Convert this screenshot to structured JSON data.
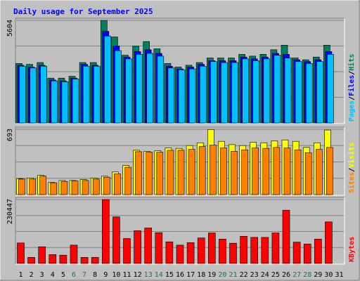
{
  "chart_data": {
    "type": "bar",
    "title": "Daily usage for September 2025",
    "days": [
      "1",
      "2",
      "3",
      "4",
      "5",
      "6",
      "7",
      "8",
      "9",
      "10",
      "11",
      "12",
      "13",
      "14",
      "15",
      "16",
      "17",
      "18",
      "19",
      "20",
      "21",
      "22",
      "23",
      "24",
      "25",
      "26",
      "27",
      "28",
      "29",
      "30",
      "31"
    ],
    "weekend_days": [
      "6",
      "7",
      "13",
      "14",
      "20",
      "21",
      "27",
      "28"
    ],
    "panels": [
      {
        "id": "hits",
        "max_label": "5604",
        "ymax": 5604,
        "series": [
          {
            "name": "Hits",
            "color": "#00805c",
            "values": [
              3250,
              3200,
              3300,
              2450,
              2450,
              2550,
              3300,
              3300,
              5604,
              4700,
              3700,
              4200,
              4450,
              4050,
              3250,
              3050,
              3150,
              3300,
              3550,
              3550,
              3550,
              3750,
              3650,
              3750,
              4000,
              4250,
              3550,
              3450,
              3600,
              4250
            ]
          },
          {
            "name": "Files",
            "color": "#0000ff",
            "values": [
              3150,
              3050,
              3150,
              2350,
              2300,
              2450,
              3200,
              3150,
              5000,
              4200,
              3600,
              3900,
              4000,
              3800,
              3100,
              2950,
              3050,
              3200,
              3400,
              3400,
              3400,
              3600,
              3500,
              3600,
              3800,
              3750,
              3450,
              3350,
              3450,
              3900
            ]
          },
          {
            "name": "Pages",
            "color": "#00c0ff",
            "values": [
              3100,
              3000,
              3100,
              2300,
              2250,
              2400,
              3100,
              3100,
              4750,
              3950,
              3500,
              3750,
              3800,
              3650,
              3000,
              2900,
              2950,
              3100,
              3350,
              3300,
              3300,
              3500,
              3400,
              3500,
              3700,
              3550,
              3350,
              3250,
              3350,
              3750
            ]
          }
        ]
      },
      {
        "id": "visits",
        "max_label": "693",
        "ymax": 693,
        "series": [
          {
            "name": "Visits",
            "color": "#ffff00",
            "values": [
              170,
              175,
              205,
              130,
              150,
              150,
              160,
              175,
              195,
              240,
              310,
              470,
              460,
              465,
              495,
              490,
              520,
              550,
              690,
              565,
              530,
              520,
              555,
              550,
              570,
              580,
              565,
              500,
              550,
              685
            ]
          },
          {
            "name": "Sites",
            "color": "#ff8000",
            "values": [
              165,
              165,
              195,
              125,
              140,
              145,
              150,
              165,
              185,
              220,
              290,
              455,
              450,
              450,
              470,
              470,
              480,
              510,
              525,
              495,
              460,
              475,
              495,
              490,
              500,
              495,
              475,
              445,
              480,
              500
            ]
          }
        ]
      },
      {
        "id": "kbytes",
        "max_label": "230447",
        "ymax": 230447,
        "series": [
          {
            "name": "KBytes",
            "color": "#ff0000",
            "values": [
              74000,
              22000,
              60000,
              32000,
              30000,
              66000,
              22000,
              22000,
              230447,
              168000,
              90000,
              118000,
              128000,
              111000,
              78000,
              66000,
              75000,
              92000,
              110000,
              88000,
              73000,
              98000,
              94000,
              94000,
              110000,
              192000,
              77000,
              70000,
              88000,
              150000
            ]
          }
        ]
      }
    ],
    "legend_labels": {
      "hits": [
        "Pages",
        "Files",
        "Hits"
      ],
      "visits": [
        "Sites",
        "Visits"
      ],
      "kbytes": [
        "KBytes"
      ]
    },
    "legend_separator": "/",
    "legend_colors": {
      "Pages": "#00c0ff",
      "Files": "#0000ff",
      "Hits": "#00805c",
      "Sites": "#ff8000",
      "Visits": "#ffff00",
      "KBytes": "#ff0000"
    },
    "title_color": "#0000ff",
    "weekday_label_color": "#000000",
    "weekend_label_color": "#00805c",
    "plot_background": "#c0c0c0",
    "grid": true
  }
}
